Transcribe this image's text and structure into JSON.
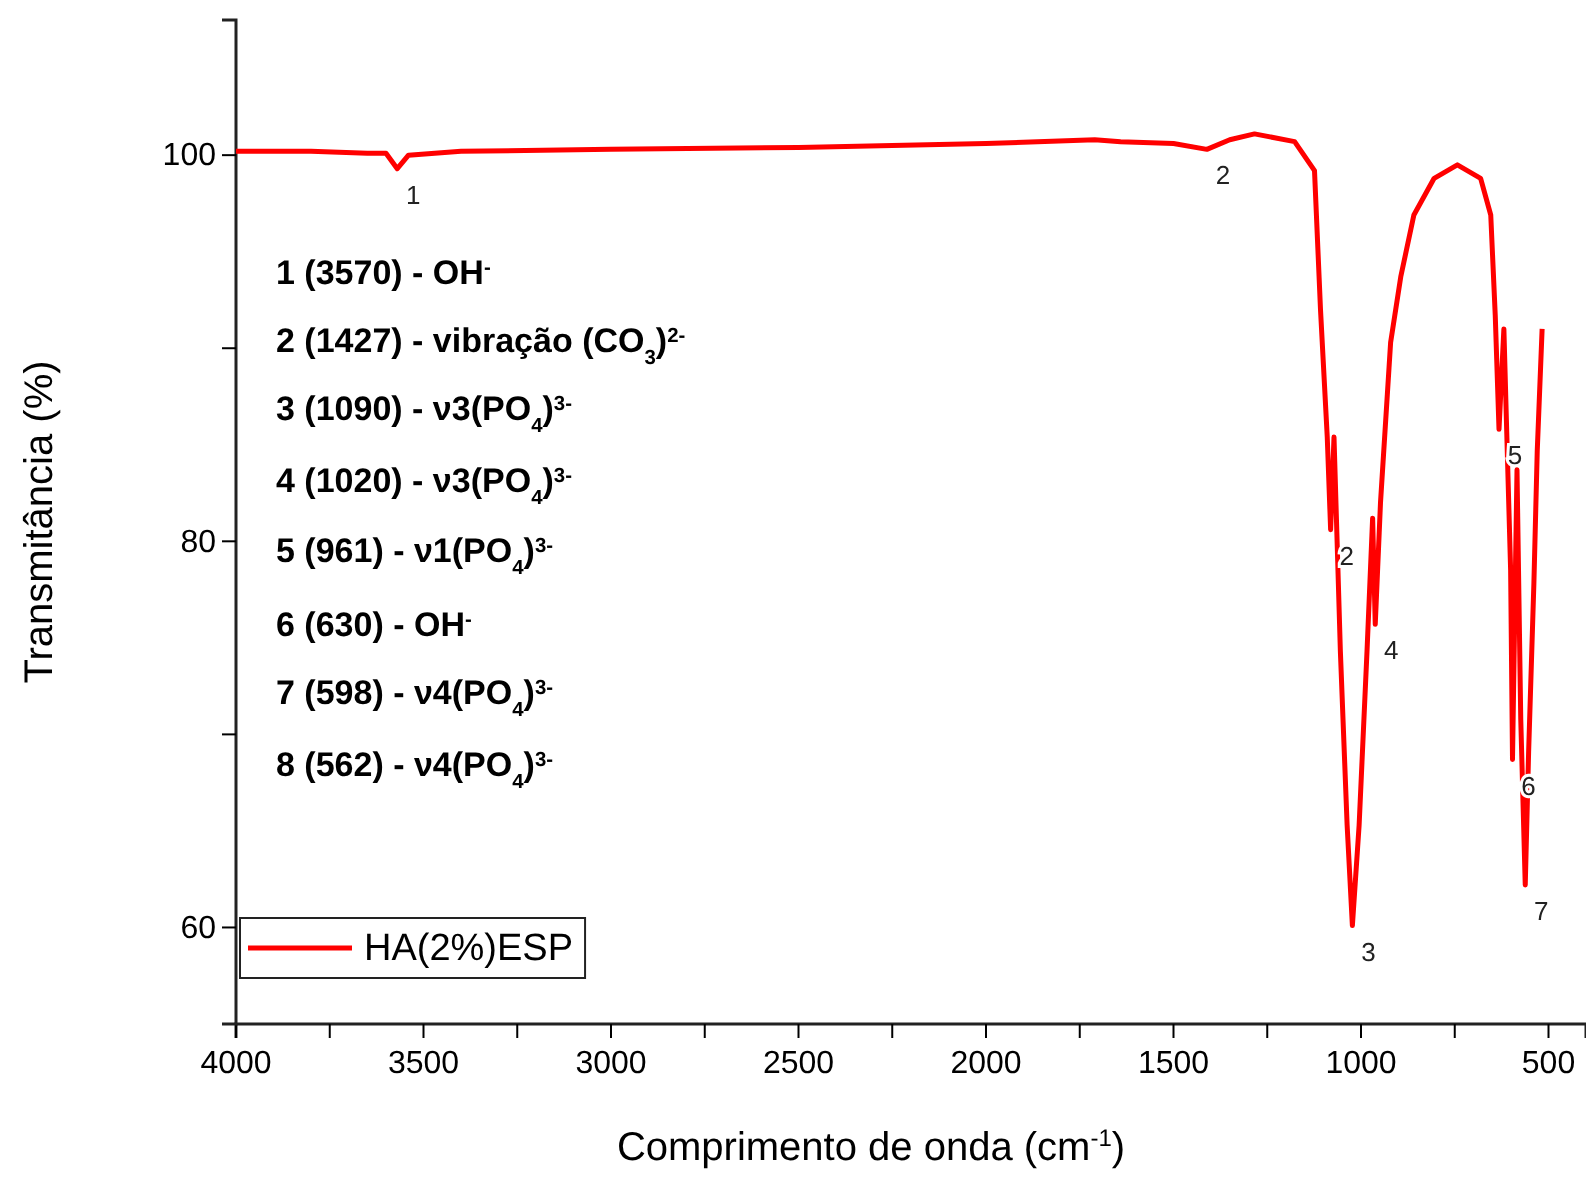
{
  "chart_data": {
    "type": "line",
    "xlabel": "Comprimento de onda (cm$^{-1}$)",
    "ylabel": "Transmitância (%)",
    "xlim": [
      4000,
      400
    ],
    "ylim": [
      55,
      107
    ],
    "xticks": [
      4000,
      {
        "value": 3750,
        "label": null
      },
      3500,
      {
        "value": 3250,
        "label": null
      },
      3000,
      {
        "value": 2750,
        "label": null
      },
      2500,
      {
        "value": 2250,
        "label": null
      },
      2000,
      {
        "value": 1750,
        "label": null
      },
      1500,
      {
        "value": 1250,
        "label": null
      },
      1000,
      {
        "value": 750,
        "label": null
      },
      500
    ],
    "yticks": [
      60,
      {
        "value": 70,
        "label": null
      },
      80,
      {
        "value": 90,
        "label": null
      },
      100
    ],
    "grid": false,
    "legend": "bottom left",
    "marker": "none",
    "line_style": "solid",
    "series": [
      {
        "name": "HA(2%)ESP",
        "color": "#ff0000",
        "x": [
          4000,
          3800,
          3650,
          3600,
          3570,
          3540,
          3400,
          3000,
          2500,
          2000,
          1710,
          1641,
          1500,
          1411,
          1350,
          1284,
          1177,
          1124,
          1108,
          1090,
          1081,
          1072,
          1055,
          1037,
          1023,
          1005,
          984,
          969,
          962,
          948,
          921,
          894,
          859,
          805,
          743,
          681,
          654,
          642,
          632,
          619,
          610,
          601,
          596,
          584,
          574,
          562,
          553,
          539,
          530,
          517
        ],
        "values": [
          100.2,
          100.2,
          100.1,
          100.1,
          99.3,
          100.0,
          100.2,
          100.3,
          100.4,
          100.6,
          100.8,
          100.7,
          100.6,
          100.3,
          100.8,
          101.1,
          100.7,
          99.2,
          92.0,
          85.4,
          80.6,
          85.4,
          74.3,
          65.3,
          60.1,
          65.3,
          74.3,
          81.2,
          75.7,
          82.0,
          90.3,
          93.7,
          96.9,
          98.8,
          99.5,
          98.8,
          96.9,
          91.7,
          85.8,
          91.0,
          84.7,
          78.5,
          68.7,
          83.7,
          70.8,
          62.2,
          69.1,
          77.8,
          84.7,
          91.0
        ]
      }
    ],
    "annotations": [
      {
        "text": "1",
        "x": 3570,
        "y": 99.3
      },
      {
        "text": "2",
        "x": 1411,
        "y": 100.3
      },
      {
        "text": "2",
        "x": 1081,
        "y": 80.6
      },
      {
        "text": "3",
        "x": 1023,
        "y": 60.1
      },
      {
        "text": "4",
        "x": 962,
        "y": 75.7
      },
      {
        "text": "5",
        "x": 632,
        "y": 85.8
      },
      {
        "text": "6",
        "x": 596,
        "y": 68.7
      },
      {
        "text": "7",
        "x": 562,
        "y": 62.2
      },
      "1 (3570) - OH$^{-}$",
      "2 (1427) - vibração (CO$_{3}$)$^{2-}$",
      "3 (1090) - ν3(PO$_{4}$)$^{3-}$",
      "4 (1020) - ν3(PO$_{4}$)$^{3-}$",
      "5 (961) - ν1(PO$_{4}$)$^{3-}$",
      "6 (630) - OH$^{-}$",
      "7 (598) - ν4(PO$_{4}$)$^{3-}$",
      "8 (562) - ν4(PO$_{4}$)$^{3-}$"
    ]
  }
}
